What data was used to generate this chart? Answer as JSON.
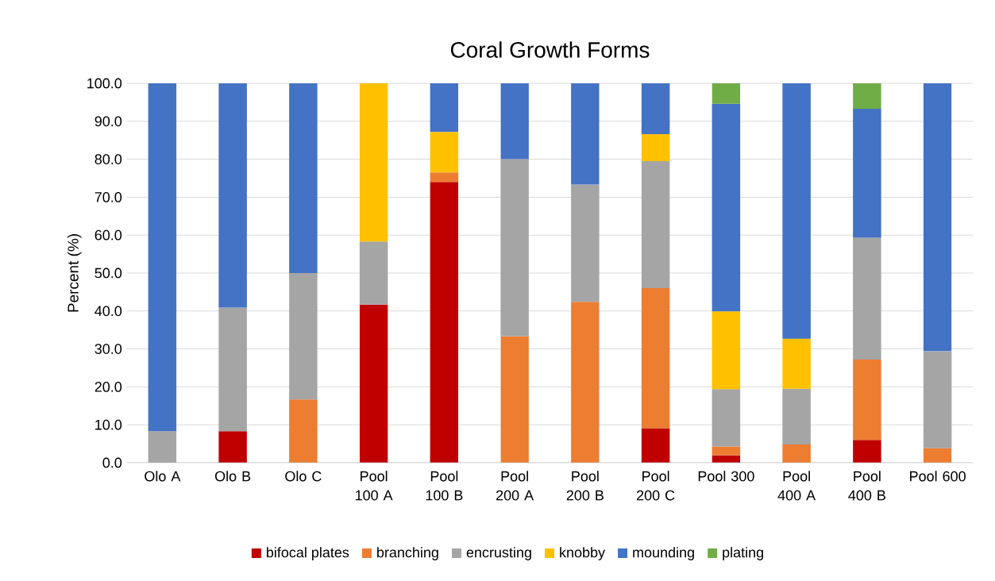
{
  "chart_data": {
    "type": "bar",
    "title": "Coral Growth Forms",
    "ylabel": "Percent (%)",
    "stacked": true,
    "categories": [
      "Olo A",
      "Olo B",
      "Olo C",
      "Pool 100 A",
      "Pool 100 B",
      "Pool 200 A",
      "Pool 200 B",
      "Pool 200 C",
      "Pool 300",
      "Pool 400 A",
      "Pool 400 B",
      "Pool 600"
    ],
    "series": [
      {
        "name": "bifocal plates",
        "color": "#c00000",
        "values": [
          null,
          8.3,
          null,
          41.7,
          74.0,
          null,
          null,
          9.1,
          2.0,
          null,
          6.0,
          null
        ]
      },
      {
        "name": "branching",
        "color": "#ed7d31",
        "values": [
          null,
          null,
          16.7,
          null,
          2.5,
          33.3,
          42.4,
          36.9,
          2.3,
          4.8,
          21.2,
          3.8
        ]
      },
      {
        "name": "encrusting",
        "color": "#a5a5a5",
        "values": [
          8.3,
          32.6,
          33.3,
          16.6,
          null,
          46.7,
          30.9,
          33.5,
          15.1,
          14.7,
          32.1,
          25.6
        ]
      },
      {
        "name": "knobby",
        "color": "#ffc000",
        "values": [
          null,
          null,
          null,
          41.7,
          10.7,
          null,
          null,
          7.1,
          20.5,
          13.2,
          null,
          null
        ]
      },
      {
        "name": "mounding",
        "color": "#4472c4",
        "values": [
          91.7,
          59.1,
          50.0,
          null,
          12.8,
          20.0,
          26.7,
          13.4,
          54.7,
          67.3,
          34.0,
          70.6
        ]
      },
      {
        "name": "plating",
        "color": "#70ad47",
        "values": [
          null,
          null,
          null,
          null,
          null,
          null,
          null,
          null,
          5.4,
          null,
          6.7,
          null
        ]
      }
    ],
    "ylim": [
      0,
      100
    ],
    "yticks": [
      {
        "value": 0,
        "label": "0.0"
      },
      {
        "value": 10,
        "label": "10.0"
      },
      {
        "value": 20,
        "label": "20.0"
      },
      {
        "value": 30,
        "label": "30.0"
      },
      {
        "value": 40,
        "label": "40.0"
      },
      {
        "value": 50,
        "label": "50.0"
      },
      {
        "value": 60,
        "label": "60.0"
      },
      {
        "value": 70,
        "label": "70.0"
      },
      {
        "value": 80,
        "label": "80.0"
      },
      {
        "value": 90,
        "label": "90.0"
      },
      {
        "value": 100,
        "label": "100.0"
      }
    ],
    "grid": "y",
    "legend": "bottom"
  }
}
